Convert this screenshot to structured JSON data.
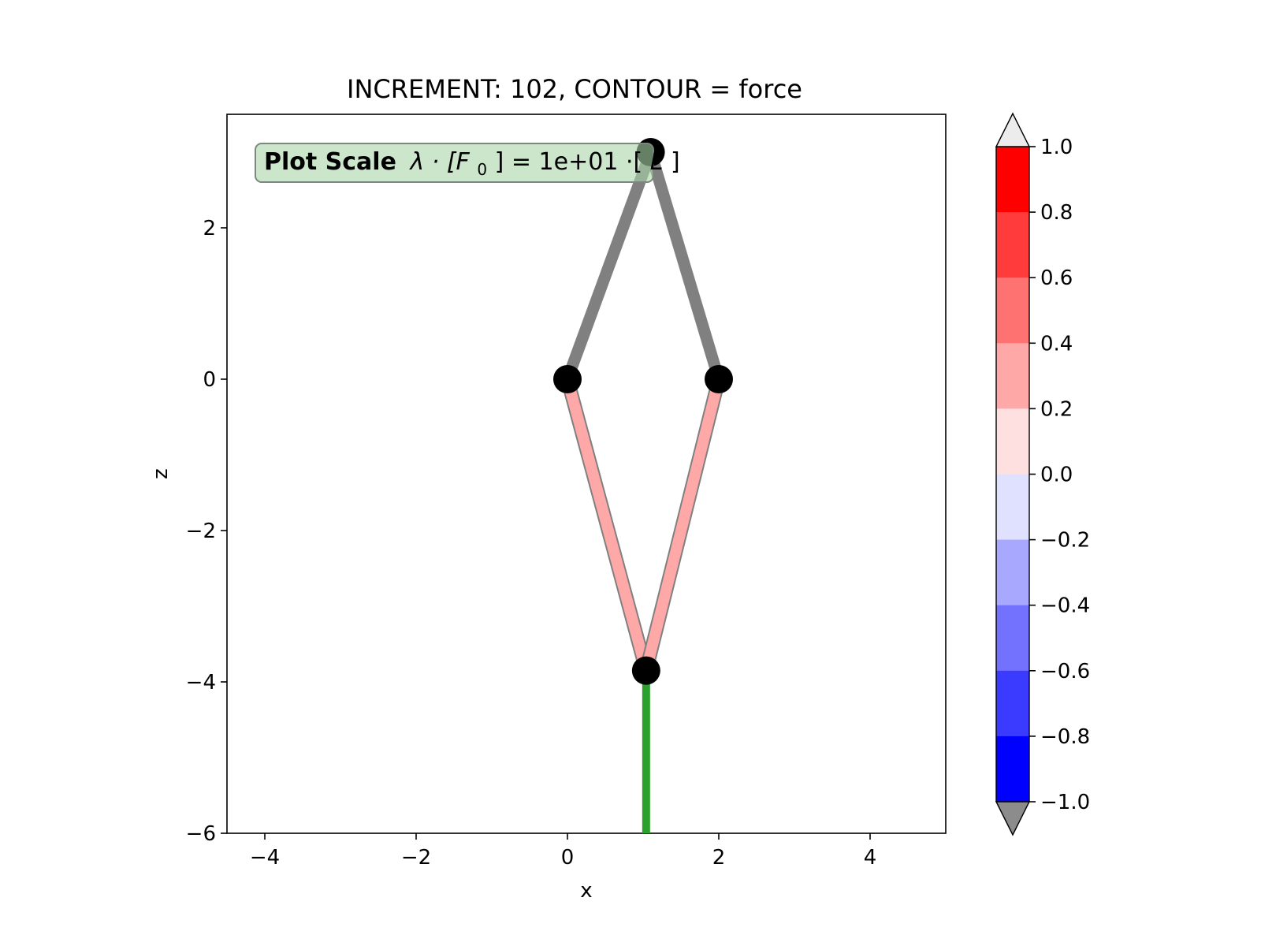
{
  "chart_data": {
    "type": "structure-plot",
    "title": "INCREMENT: 102, CONTOUR = force",
    "xlabel": "x",
    "ylabel": "z",
    "xlim": [
      -4.5,
      5.0
    ],
    "ylim": [
      -6.0,
      3.5
    ],
    "xticks": [
      -4,
      -2,
      0,
      2,
      4
    ],
    "yticks": [
      -6,
      -4,
      -2,
      0,
      2
    ],
    "xtick_labels": [
      "−4",
      "−2",
      "0",
      "2",
      "4"
    ],
    "ytick_labels": [
      "−6",
      "−4",
      "−2",
      "0",
      "2"
    ],
    "scale_box": {
      "bold": "Plot Scale",
      "formula_prefix": "λ · [F",
      "sub": "0",
      "formula_mid": "] =  1e+01 ·[",
      "unit": "L",
      "formula_end": "]",
      "color": "#a8d5a8"
    },
    "nodes": [
      {
        "x": 0.0,
        "z": 0.0
      },
      {
        "x": 2.0,
        "z": 0.0
      },
      {
        "x": 1.1,
        "z": 3.0
      },
      {
        "x": 1.04,
        "z": -3.85
      }
    ],
    "members": [
      {
        "from": [
          0.0,
          0.0
        ],
        "to": [
          1.1,
          3.0
        ],
        "color": "#808080",
        "style": "gray"
      },
      {
        "from": [
          2.0,
          0.0
        ],
        "to": [
          1.1,
          3.0
        ],
        "color": "#808080",
        "style": "gray"
      },
      {
        "from": [
          0.0,
          0.0
        ],
        "to": [
          1.04,
          -3.85
        ],
        "color": "#ffa8a8",
        "style": "force"
      },
      {
        "from": [
          2.0,
          0.0
        ],
        "to": [
          1.04,
          -3.85
        ],
        "color": "#ffa8a8",
        "style": "force"
      }
    ],
    "load": {
      "from": [
        1.04,
        -3.85
      ],
      "to": [
        1.04,
        -6.0
      ],
      "color": "#2ca02c"
    },
    "colorbar": {
      "ticks": [
        1.0,
        0.8,
        0.6,
        0.4,
        0.2,
        0.0,
        -0.2,
        -0.4,
        -0.6,
        -0.8,
        -1.0
      ],
      "tick_labels": [
        "1.0",
        "0.8",
        "0.6",
        "0.4",
        "0.2",
        "0.0",
        "−0.2",
        "−0.4",
        "−0.6",
        "−0.8",
        "−1.0"
      ],
      "segments": [
        "#ff0000",
        "#ff3b3b",
        "#ff7272",
        "#ffa8a8",
        "#ffe0e0",
        "#e0e0ff",
        "#a8a8ff",
        "#7272ff",
        "#3b3bff",
        "#0000ff"
      ],
      "over_color": "#ececec",
      "under_color": "#8c8c8c"
    }
  }
}
